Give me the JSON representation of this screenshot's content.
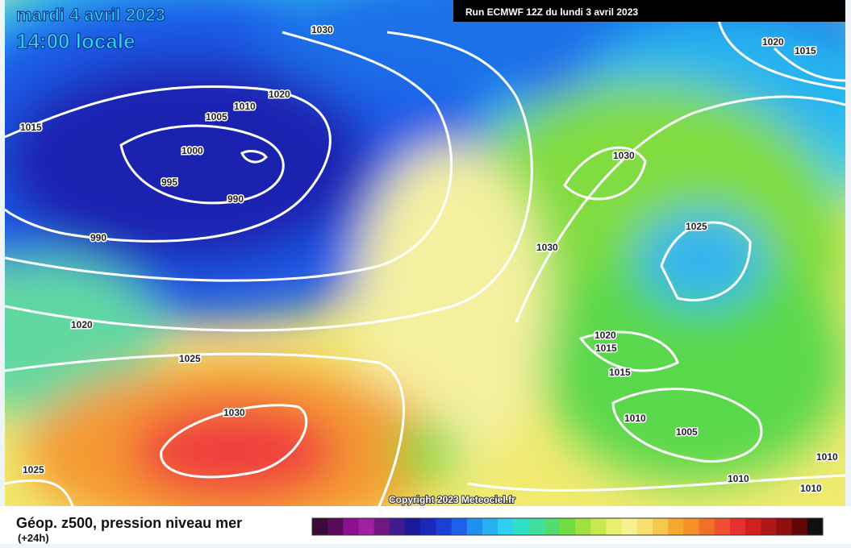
{
  "header": {
    "date": "mardi 4 avril 2023",
    "time": "14:00 locale",
    "run": "Run ECMWF 12Z du lundi 3 avril 2023"
  },
  "isobar_labels": [
    "1030",
    "1020",
    "1015",
    "1020",
    "1010",
    "1005",
    "1015",
    "1000",
    "1030",
    "995",
    "990",
    "990",
    "1030",
    "1025",
    "1020",
    "1020",
    "1015",
    "1015",
    "1025",
    "1030",
    "1010",
    "1005",
    "1025",
    "1010",
    "1010",
    "1010"
  ],
  "copyright": "Copyright 2023 Meteociel.fr",
  "legend": {
    "title": "Géop. z500, pression niveau mer",
    "subtitle": "(+24h)"
  }
}
